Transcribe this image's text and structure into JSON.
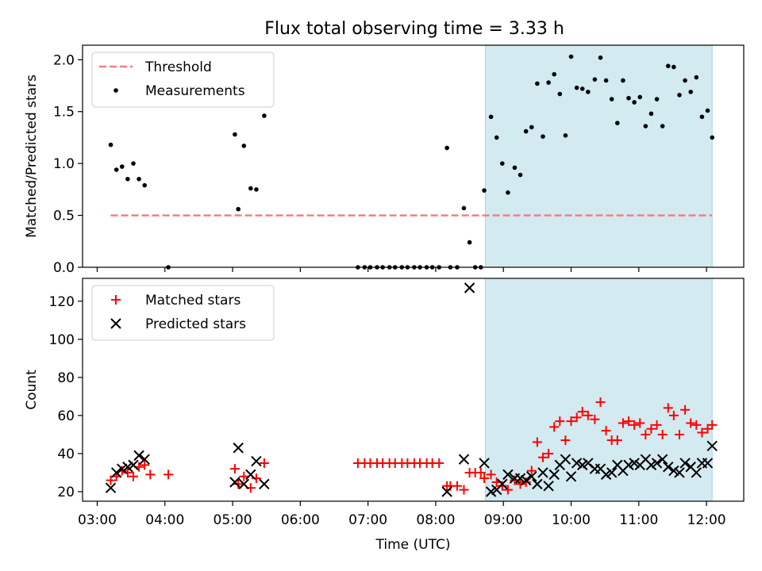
{
  "title": "Flux total observing time = 3.33 h",
  "chart_data": [
    {
      "type": "scatter",
      "ylabel": "Matched/Predicted stars",
      "ylim": [
        0,
        2.14
      ],
      "yticks": [
        0,
        0.5,
        1.0,
        1.5,
        2.0
      ],
      "ytick_labels": [
        "0.0",
        "0.5",
        "1.0",
        "1.5",
        "2.0"
      ],
      "xlim": [
        "02:47",
        "12:33"
      ],
      "xticks": [
        "03:00",
        "04:00",
        "05:00",
        "06:00",
        "07:00",
        "08:00",
        "09:00",
        "10:00",
        "11:00",
        "12:00"
      ],
      "shaded_span": [
        "08:44",
        "12:05"
      ],
      "legend_position": "upper-left",
      "threshold": {
        "name": "Threshold",
        "value": 0.5,
        "x_range": [
          "03:12",
          "12:05"
        ],
        "color": "#f08080"
      },
      "series": [
        {
          "name": "Measurements",
          "color": "#000000",
          "points": [
            [
              "03:12",
              1.18
            ],
            [
              "03:17",
              0.94
            ],
            [
              "03:22",
              0.97
            ],
            [
              "03:27",
              0.85
            ],
            [
              "03:32",
              1.0
            ],
            [
              "03:37",
              0.85
            ],
            [
              "03:42",
              0.79
            ],
            [
              "04:03",
              0.0
            ],
            [
              "05:02",
              1.28
            ],
            [
              "05:05",
              0.56
            ],
            [
              "05:10",
              1.17
            ],
            [
              "05:16",
              0.76
            ],
            [
              "05:21",
              0.75
            ],
            [
              "05:28",
              1.46
            ],
            [
              "06:51",
              0.0
            ],
            [
              "06:57",
              0.0
            ],
            [
              "07:02",
              0.0
            ],
            [
              "07:08",
              0.0
            ],
            [
              "07:13",
              0.0
            ],
            [
              "07:19",
              0.0
            ],
            [
              "07:24",
              0.0
            ],
            [
              "07:30",
              0.0
            ],
            [
              "07:35",
              0.0
            ],
            [
              "07:41",
              0.0
            ],
            [
              "07:46",
              0.0
            ],
            [
              "07:52",
              0.0
            ],
            [
              "07:57",
              0.0
            ],
            [
              "08:03",
              0.0
            ],
            [
              "08:10",
              1.15
            ],
            [
              "08:13",
              0.0
            ],
            [
              "08:19",
              0.0
            ],
            [
              "08:25",
              0.57
            ],
            [
              "08:30",
              0.24
            ],
            [
              "08:35",
              0.0
            ],
            [
              "08:40",
              0.0
            ],
            [
              "08:43",
              0.74
            ],
            [
              "08:49",
              1.45
            ],
            [
              "08:54",
              1.25
            ],
            [
              "08:59",
              1.0
            ],
            [
              "09:04",
              0.72
            ],
            [
              "09:10",
              0.96
            ],
            [
              "09:15",
              0.89
            ],
            [
              "09:20",
              1.31
            ],
            [
              "09:25",
              1.35
            ],
            [
              "09:30",
              1.77
            ],
            [
              "09:35",
              1.26
            ],
            [
              "09:40",
              1.78
            ],
            [
              "09:45",
              1.86
            ],
            [
              "09:50",
              1.67
            ],
            [
              "09:55",
              1.27
            ],
            [
              "10:00",
              2.03
            ],
            [
              "10:05",
              1.73
            ],
            [
              "10:10",
              1.72
            ],
            [
              "10:15",
              1.69
            ],
            [
              "10:21",
              1.81
            ],
            [
              "10:26",
              2.02
            ],
            [
              "10:31",
              1.8
            ],
            [
              "10:36",
              1.62
            ],
            [
              "10:41",
              1.39
            ],
            [
              "10:46",
              1.8
            ],
            [
              "10:51",
              1.63
            ],
            [
              "10:56",
              1.59
            ],
            [
              "11:01",
              1.64
            ],
            [
              "11:06",
              1.36
            ],
            [
              "11:11",
              1.48
            ],
            [
              "11:16",
              1.62
            ],
            [
              "11:21",
              1.36
            ],
            [
              "11:26",
              1.94
            ],
            [
              "11:31",
              1.93
            ],
            [
              "11:36",
              1.66
            ],
            [
              "11:41",
              1.8
            ],
            [
              "11:46",
              1.69
            ],
            [
              "11:51",
              1.83
            ],
            [
              "11:56",
              1.45
            ],
            [
              "12:01",
              1.51
            ],
            [
              "12:05",
              1.25
            ]
          ]
        }
      ]
    },
    {
      "type": "scatter",
      "xlabel": "Time (UTC)",
      "ylabel": "Count",
      "ylim": [
        15,
        132
      ],
      "yticks": [
        20,
        40,
        60,
        80,
        100,
        120
      ],
      "ytick_labels": [
        "20",
        "40",
        "60",
        "80",
        "100",
        "120"
      ],
      "xlim": [
        "02:47",
        "12:33"
      ],
      "xticks": [
        "03:00",
        "04:00",
        "05:00",
        "06:00",
        "07:00",
        "08:00",
        "09:00",
        "10:00",
        "11:00",
        "12:00"
      ],
      "xtick_labels": [
        "03:00",
        "04:00",
        "05:00",
        "06:00",
        "07:00",
        "08:00",
        "09:00",
        "10:00",
        "11:00",
        "12:00"
      ],
      "shaded_span": [
        "08:44",
        "12:05"
      ],
      "legend_position": "upper-left",
      "series": [
        {
          "name": "Matched stars",
          "marker": "plus",
          "color": "#ff0000",
          "points": [
            [
              "03:12",
              26
            ],
            [
              "03:17",
              28
            ],
            [
              "03:22",
              31
            ],
            [
              "03:27",
              30
            ],
            [
              "03:32",
              28
            ],
            [
              "03:37",
              33
            ],
            [
              "03:42",
              34
            ],
            [
              "03:47",
              29
            ],
            [
              "04:03",
              29
            ],
            [
              "05:02",
              32
            ],
            [
              "05:05",
              24
            ],
            [
              "05:10",
              28
            ],
            [
              "05:16",
              22
            ],
            [
              "05:21",
              27
            ],
            [
              "05:28",
              35
            ],
            [
              "06:51",
              35
            ],
            [
              "06:57",
              35
            ],
            [
              "07:02",
              35
            ],
            [
              "07:08",
              35
            ],
            [
              "07:13",
              35
            ],
            [
              "07:19",
              35
            ],
            [
              "07:24",
              35
            ],
            [
              "07:30",
              35
            ],
            [
              "07:35",
              35
            ],
            [
              "07:41",
              35
            ],
            [
              "07:46",
              35
            ],
            [
              "07:52",
              35
            ],
            [
              "07:57",
              35
            ],
            [
              "08:03",
              35
            ],
            [
              "08:10",
              23
            ],
            [
              "08:13",
              23
            ],
            [
              "08:19",
              23
            ],
            [
              "08:25",
              21
            ],
            [
              "08:30",
              30
            ],
            [
              "08:35",
              30
            ],
            [
              "08:40",
              30
            ],
            [
              "08:43",
              27
            ],
            [
              "08:49",
              29
            ],
            [
              "08:54",
              25
            ],
            [
              "08:59",
              23
            ],
            [
              "09:04",
              21
            ],
            [
              "09:10",
              26
            ],
            [
              "09:15",
              24
            ],
            [
              "09:20",
              25
            ],
            [
              "09:25",
              31
            ],
            [
              "09:30",
              46
            ],
            [
              "09:35",
              38
            ],
            [
              "09:40",
              40
            ],
            [
              "09:45",
              54
            ],
            [
              "09:50",
              57
            ],
            [
              "09:55",
              47
            ],
            [
              "10:00",
              57
            ],
            [
              "10:05",
              59
            ],
            [
              "10:10",
              62
            ],
            [
              "10:15",
              60
            ],
            [
              "10:21",
              58
            ],
            [
              "10:26",
              67
            ],
            [
              "10:31",
              52
            ],
            [
              "10:36",
              47
            ],
            [
              "10:41",
              47
            ],
            [
              "10:46",
              56
            ],
            [
              "10:51",
              57
            ],
            [
              "10:56",
              55
            ],
            [
              "11:01",
              56
            ],
            [
              "11:06",
              50
            ],
            [
              "11:11",
              53
            ],
            [
              "11:16",
              55
            ],
            [
              "11:21",
              50
            ],
            [
              "11:26",
              64
            ],
            [
              "11:31",
              60
            ],
            [
              "11:36",
              50
            ],
            [
              "11:41",
              63
            ],
            [
              "11:46",
              56
            ],
            [
              "11:51",
              55
            ],
            [
              "11:56",
              51
            ],
            [
              "12:01",
              53
            ],
            [
              "12:05",
              55
            ]
          ]
        },
        {
          "name": "Predicted stars",
          "marker": "x",
          "color": "#000000",
          "points": [
            [
              "03:12",
              22
            ],
            [
              "03:17",
              30
            ],
            [
              "03:22",
              32
            ],
            [
              "03:27",
              33
            ],
            [
              "03:32",
              34
            ],
            [
              "03:37",
              39
            ],
            [
              "03:42",
              37
            ],
            [
              "05:02",
              25
            ],
            [
              "05:05",
              43
            ],
            [
              "05:10",
              24
            ],
            [
              "05:16",
              29
            ],
            [
              "05:21",
              36
            ],
            [
              "05:28",
              24
            ],
            [
              "08:10",
              20
            ],
            [
              "08:25",
              37
            ],
            [
              "08:30",
              127
            ],
            [
              "08:43",
              35
            ],
            [
              "08:49",
              20
            ],
            [
              "08:54",
              21
            ],
            [
              "08:59",
              24
            ],
            [
              "09:04",
              29
            ],
            [
              "09:10",
              27
            ],
            [
              "09:15",
              27
            ],
            [
              "09:20",
              26
            ],
            [
              "09:25",
              28
            ],
            [
              "09:30",
              24
            ],
            [
              "09:35",
              30
            ],
            [
              "09:40",
              23
            ],
            [
              "09:45",
              29
            ],
            [
              "09:50",
              34
            ],
            [
              "09:55",
              37
            ],
            [
              "10:00",
              28
            ],
            [
              "10:05",
              35
            ],
            [
              "10:10",
              34
            ],
            [
              "10:15",
              35
            ],
            [
              "10:21",
              32
            ],
            [
              "10:26",
              32
            ],
            [
              "10:31",
              29
            ],
            [
              "10:36",
              30
            ],
            [
              "10:41",
              34
            ],
            [
              "10:46",
              31
            ],
            [
              "10:51",
              34
            ],
            [
              "10:56",
              35
            ],
            [
              "11:01",
              34
            ],
            [
              "11:06",
              37
            ],
            [
              "11:11",
              34
            ],
            [
              "11:16",
              35
            ],
            [
              "11:21",
              37
            ],
            [
              "11:26",
              33
            ],
            [
              "11:31",
              31
            ],
            [
              "11:36",
              30
            ],
            [
              "11:41",
              35
            ],
            [
              "11:46",
              33
            ],
            [
              "11:51",
              30
            ],
            [
              "11:56",
              35
            ],
            [
              "12:01",
              35
            ],
            [
              "12:05",
              44
            ]
          ]
        }
      ]
    }
  ]
}
